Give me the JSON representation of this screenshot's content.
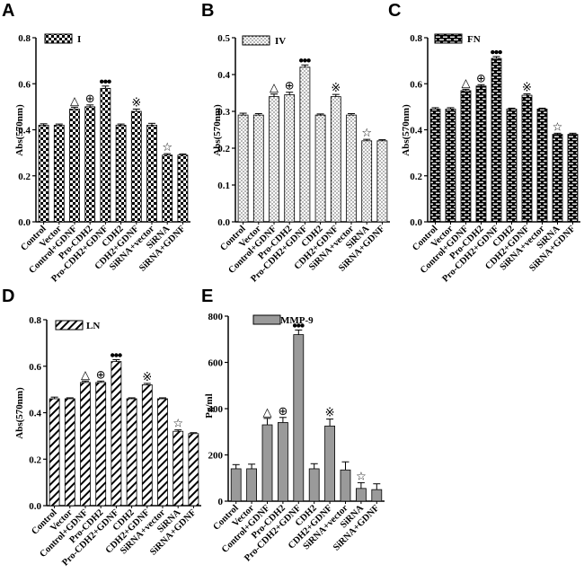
{
  "figure": {
    "background": "#ffffff",
    "bar_edge": "#000000"
  },
  "chart_data": [
    {
      "panel": "A",
      "type": "bar",
      "legend": "I",
      "pattern": "checker",
      "ylabel": "Abs(570nm)",
      "ylim": [
        0,
        0.8
      ],
      "yticks": [
        "0.0",
        "0.2",
        "0.4",
        "0.6",
        "0.8"
      ],
      "categories": [
        "Control",
        "Vector",
        "Control+GDNF",
        "Pro-CDH2",
        "Pro-CDH2+GDNF",
        "CDH2",
        "CDH2+GDNF",
        "SiRNA+vector",
        "SiRNA",
        "SiRNA+GDNF"
      ],
      "values": [
        0.42,
        0.42,
        0.49,
        0.5,
        0.58,
        0.42,
        0.48,
        0.42,
        0.29,
        0.29
      ],
      "errors": [
        0.006,
        0.005,
        0.008,
        0.008,
        0.01,
        0.005,
        0.01,
        0.008,
        0.006,
        0.005
      ],
      "markers": [
        "",
        "",
        "△",
        "⊕",
        "●●●",
        "",
        "※",
        "",
        "☆",
        ""
      ]
    },
    {
      "panel": "B",
      "type": "bar",
      "legend": "IV",
      "pattern": "dots",
      "ylabel": "Abs(570nm)",
      "ylim": [
        0,
        0.5
      ],
      "yticks": [
        "0.0",
        "0.1",
        "0.2",
        "0.3",
        "0.4",
        "0.5"
      ],
      "categories": [
        "Control",
        "Vector",
        "Control+GDNF",
        "Pro-CDH2",
        "Pro-CDH2+GDNF",
        "CDH2",
        "CDH2+GDNF",
        "SiRNA+vector",
        "SiRNA",
        "SiRNA+GDNF"
      ],
      "values": [
        0.29,
        0.29,
        0.34,
        0.345,
        0.42,
        0.29,
        0.34,
        0.29,
        0.22,
        0.22
      ],
      "errors": [
        0.005,
        0.004,
        0.007,
        0.007,
        0.006,
        0.003,
        0.006,
        0.004,
        0.004,
        0.003
      ],
      "markers": [
        "",
        "",
        "△",
        "⊕",
        "●●●",
        "",
        "※",
        "",
        "☆",
        ""
      ]
    },
    {
      "panel": "C",
      "type": "bar",
      "legend": "FN",
      "pattern": "brick",
      "ylabel": "Abs(570nm)",
      "ylim": [
        0,
        0.8
      ],
      "yticks": [
        "0.0",
        "0.2",
        "0.4",
        "0.6",
        "0.8"
      ],
      "categories": [
        "Control",
        "Vector",
        "Control+GDNF",
        "Pro-CDH2",
        "Pro-CDH2+GDNF",
        "CDH2",
        "CDH2+GDNF",
        "SiRNA+vector",
        "SiRNA",
        "SiRNA+GDNF"
      ],
      "values": [
        0.49,
        0.49,
        0.57,
        0.59,
        0.71,
        0.49,
        0.55,
        0.49,
        0.38,
        0.38
      ],
      "errors": [
        0.006,
        0.006,
        0.006,
        0.006,
        0.008,
        0.004,
        0.006,
        0.004,
        0.005,
        0.005
      ],
      "markers": [
        "",
        "",
        "△",
        "⊕",
        "●●●",
        "",
        "※",
        "",
        "☆",
        ""
      ]
    },
    {
      "panel": "D",
      "type": "bar",
      "legend": "LN",
      "pattern": "diagonal",
      "ylabel": "Abs(570nm)",
      "ylim": [
        0,
        0.8
      ],
      "yticks": [
        "0.0",
        "0.2",
        "0.4",
        "0.6",
        "0.8"
      ],
      "categories": [
        "Control",
        "Vector",
        "Control+GDNF",
        "Pro-CDH2",
        "Pro-CDH2+GDNF",
        "CDH2",
        "CDH2+GDNF",
        "SiRNA+vector",
        "SiRNA",
        "SiRNA+GDNF"
      ],
      "values": [
        0.46,
        0.46,
        0.53,
        0.53,
        0.62,
        0.46,
        0.52,
        0.46,
        0.32,
        0.31
      ],
      "errors": [
        0.007,
        0.004,
        0.006,
        0.006,
        0.008,
        0.004,
        0.006,
        0.004,
        0.006,
        0.004
      ],
      "markers": [
        "",
        "",
        "△",
        "⊕",
        "●●●",
        "",
        "※",
        "",
        "☆",
        ""
      ]
    },
    {
      "panel": "E",
      "type": "bar",
      "legend": "MMP-9",
      "pattern": "solid",
      "fill": "#9a9a9a",
      "ylabel": "Pg/ml",
      "ylim": [
        0,
        800
      ],
      "yticks": [
        "0",
        "200",
        "400",
        "600",
        "800"
      ],
      "categories": [
        "Control",
        "Vector",
        "Control+GDNF",
        "Pro-CDH2",
        "Pro-CDH2+GDNF",
        "CDH2",
        "CDH2+GDNF",
        "SiRNA+vector",
        "SiRNA",
        "SiRNA+GDNF"
      ],
      "values": [
        140,
        140,
        330,
        340,
        720,
        140,
        325,
        135,
        55,
        50
      ],
      "errors": [
        18,
        20,
        28,
        22,
        20,
        22,
        30,
        35,
        25,
        25
      ],
      "markers": [
        "",
        "",
        "△",
        "⊕",
        "●●●",
        "",
        "※",
        "",
        "☆",
        ""
      ]
    }
  ]
}
